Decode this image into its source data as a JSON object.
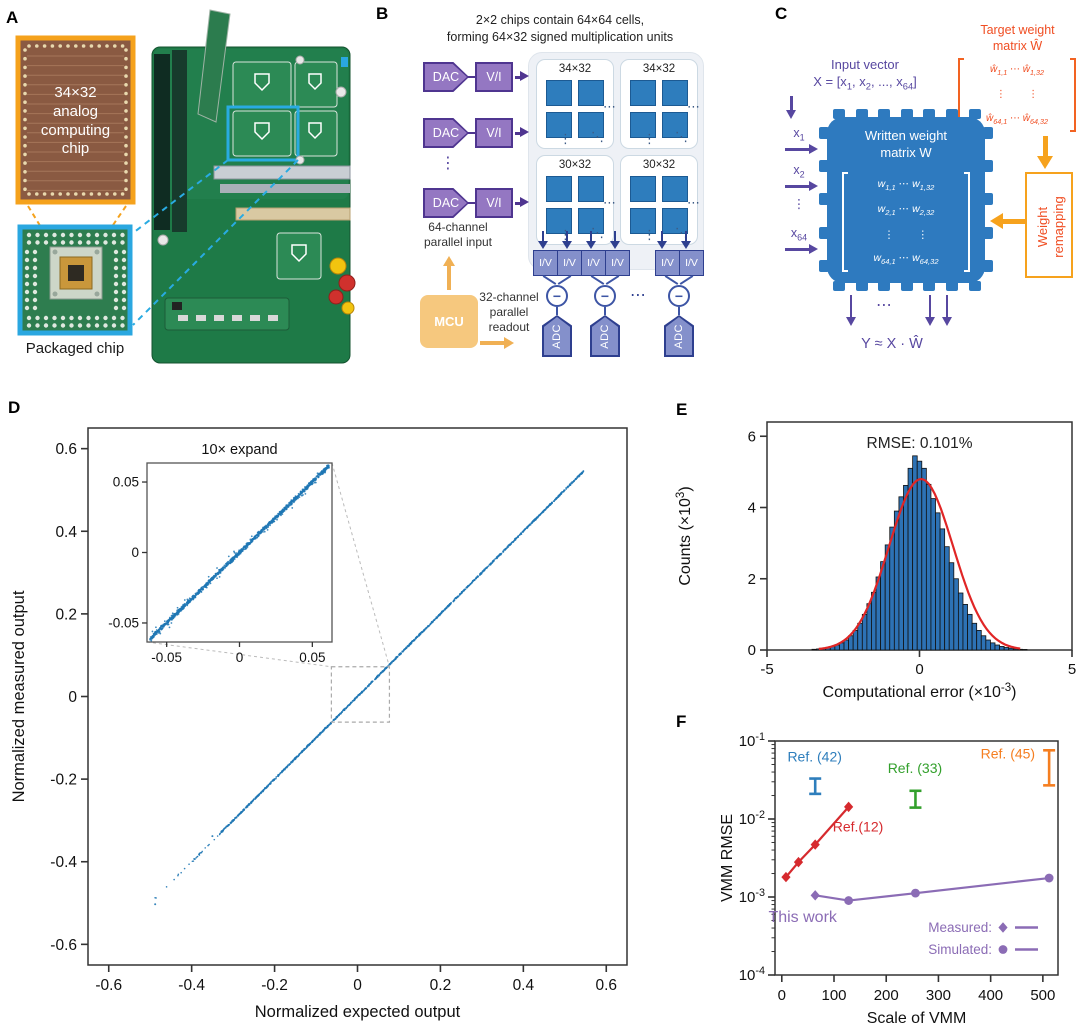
{
  "colors": {
    "diagram_purple": "#5747a0",
    "diagram_blue": "#2e7abf",
    "accent_orange": "#f6a21d",
    "orange_red": "#f04e23",
    "scatter_blue": "#1f77b4",
    "hist_red": "#e02626"
  },
  "panels": {
    "a": {
      "label": "A",
      "die_label": "34×32\nanalog\ncomputing\nchip",
      "caption": "Packaged chip"
    },
    "b": {
      "label": "B",
      "title": "2×2 chips contain 64×64 cells,\nforming 64×32 signed multiplication units",
      "dac_label": "DAC",
      "vi_label": "V/I",
      "chip_titles": [
        "34×32",
        "34×32",
        "30×32",
        "30×32"
      ],
      "iv_label": "I/V",
      "adc_label": "ADC",
      "mcu_label": "MCU",
      "input_caption": "64-channel\nparallel input",
      "readout_caption": "32-channel\nparallel\nreadout",
      "hdots": "⋯",
      "vdots": "⋮",
      "ddots": "⋱",
      "minus": "−"
    },
    "c": {
      "label": "C",
      "input_title": "Input vector",
      "input_eq": "X = [x_{1}, x_{2}, ..., x_{64}]",
      "target_title": "Target weight\nmatrix Ŵ",
      "target_rows": [
        "ŵ_{1,1} ⋯ ŵ_{1,32}",
        "⋮        ⋮",
        "ŵ_{64,1} ⋯ ŵ_{64,32}"
      ],
      "chip_title": "Written weight\nmatrix W",
      "chip_rows": [
        "w_{1,1} ⋯ w_{1,32}",
        "w_{2,1} ⋯ w_{2,32}",
        "⋮        ⋮",
        "w_{64,1} ⋯ w_{64,32}"
      ],
      "inputs": [
        "x_{1}",
        "x_{2}",
        "⋮",
        "x_{64}"
      ],
      "remap_label": "Weight\nremapping",
      "output_eq": "Y ≈ X · Ŵ",
      "hdots": "⋯"
    },
    "d": {
      "label": "D"
    },
    "e": {
      "label": "E"
    },
    "f": {
      "label": "F"
    }
  },
  "chart_data": [
    {
      "id": "panel-d",
      "type": "scatter",
      "xlabel": "Normalized expected output",
      "ylabel": "Normalized measured output",
      "xlim": [
        -0.65,
        0.65
      ],
      "ylim": [
        -0.65,
        0.65
      ],
      "xticks": [
        -0.6,
        -0.4,
        -0.2,
        0,
        0.2,
        0.4,
        0.6
      ],
      "yticks": [
        -0.6,
        -0.4,
        -0.2,
        0,
        0.2,
        0.4,
        0.6
      ],
      "point_color": "#1f77b4",
      "identity_relation": "y ≈ x",
      "dense_range": [
        -0.33,
        0.545
      ],
      "sparse_range": [
        -0.42,
        -0.33
      ],
      "tail_range": [
        -0.49,
        -0.42
      ],
      "outliers": [
        [
          -0.488,
          -0.503
        ],
        [
          -0.35,
          -0.338
        ]
      ],
      "zoom_box": {
        "x": [
          -0.063,
          0.077
        ],
        "y": [
          -0.062,
          0.072
        ]
      },
      "inset": {
        "title": "10× expand",
        "xlim": [
          -0.0635,
          0.0635
        ],
        "ylim": [
          -0.0635,
          0.0635
        ],
        "xticks": [
          -0.05,
          0,
          0.05
        ],
        "yticks": [
          0.05,
          0,
          -0.05
        ],
        "range": [
          -0.0615,
          0.0615
        ]
      }
    },
    {
      "id": "panel-e",
      "type": "histogram",
      "annotation": "RMSE: 0.101%",
      "xlabel": "Computational error (×10^{-3})",
      "ylabel": "Counts (×10^{3})",
      "xlim": [
        -5,
        5
      ],
      "ylim": [
        0,
        6.4
      ],
      "xticks": [
        -5,
        0,
        5
      ],
      "yticks": [
        0,
        2,
        4,
        6
      ],
      "bar_color": "#2d72b5",
      "bar_edge": "#111111",
      "curve_color": "#e02626",
      "gauss": {
        "amp": 4.8,
        "mean": 0.05,
        "sigma": 1.05
      },
      "bin_start": -3.45,
      "bin_width": 0.15,
      "counts": [
        0.02,
        0.03,
        0.05,
        0.07,
        0.1,
        0.14,
        0.2,
        0.28,
        0.4,
        0.55,
        0.75,
        1.0,
        1.3,
        1.62,
        2.05,
        2.48,
        2.95,
        3.45,
        3.9,
        4.3,
        4.62,
        5.1,
        5.45,
        5.3,
        5.1,
        4.65,
        4.25,
        3.85,
        3.4,
        2.9,
        2.45,
        2.0,
        1.6,
        1.28,
        1.0,
        0.75,
        0.55,
        0.4,
        0.28,
        0.2,
        0.14,
        0.1,
        0.07,
        0.05,
        0.03,
        0.02,
        0.015
      ]
    },
    {
      "id": "panel-f",
      "type": "line-log",
      "xlabel": "Scale of VMM",
      "ylabel": "VMM RMSE",
      "xlim": [
        -13,
        529
      ],
      "xticks": [
        0,
        100,
        200,
        300,
        400,
        500
      ],
      "ylog_exponents": [
        -1,
        -2,
        -3,
        -4
      ],
      "series": [
        {
          "name": "Ref.(12)",
          "color": "#d62a2e",
          "markers": [
            "diamond",
            "diamond",
            "diamond",
            "diamond"
          ],
          "x": [
            8,
            32,
            64,
            128
          ],
          "y": [
            0.0018,
            0.0028,
            0.0047,
            0.0143
          ]
        },
        {
          "name": "This work",
          "color": "#8b6cb5",
          "markers": [
            "diamond",
            "circle",
            "circle",
            "circle"
          ],
          "x": [
            64,
            128,
            256,
            512
          ],
          "y": [
            0.00105,
            0.0009,
            0.00112,
            0.00175
          ]
        }
      ],
      "errorbars": [
        {
          "name": "Ref. (42)",
          "color": "#2e7ebc",
          "x": 64,
          "ylow": 0.021,
          "yhigh": 0.033
        },
        {
          "name": "Ref. (33)",
          "color": "#33a02c",
          "x": 256,
          "ylow": 0.014,
          "yhigh": 0.023
        },
        {
          "name": "Ref. (45)",
          "color": "#f57e20",
          "x": 512,
          "ylow": 0.027,
          "yhigh": 0.076
        }
      ],
      "annotations": [
        {
          "text": "Ref. (42)",
          "x": 63,
          "y": 0.055,
          "color": "#2e7ebc",
          "size": 14
        },
        {
          "text": "Ref. (33)",
          "x": 255,
          "y": 0.0386,
          "color": "#33a02c",
          "size": 14
        },
        {
          "text": "Ref. (45)",
          "x": 433,
          "y": 0.06,
          "color": "#f57e20",
          "size": 14
        },
        {
          "text": "Ref.(12)",
          "x": 146,
          "y": 0.0069,
          "color": "#d62a2e",
          "size": 14
        },
        {
          "text": "This work",
          "x": 40,
          "y": 0.00048,
          "color": "#8b6cb5",
          "size": 16
        }
      ],
      "legend": {
        "items": [
          {
            "label": "Measured:",
            "marker": "diamond"
          },
          {
            "label": "Simulated:",
            "marker": "circle"
          }
        ],
        "color": "#8b6cb5"
      }
    }
  ]
}
